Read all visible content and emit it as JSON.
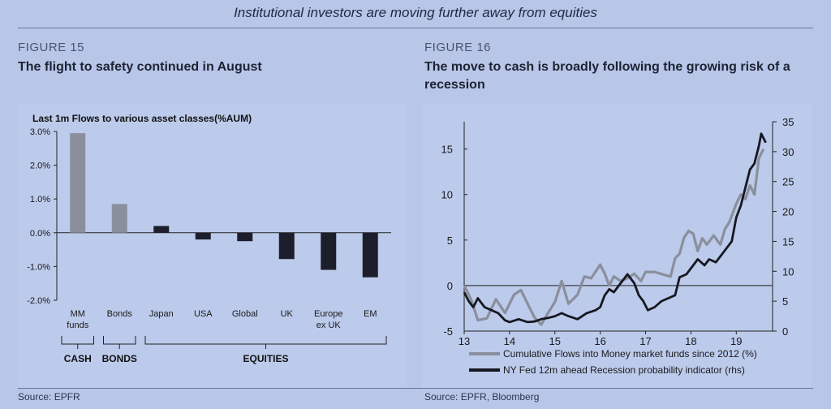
{
  "headline": "Institutional investors are moving further away from equities",
  "left": {
    "figure_number": "FIGURE 15",
    "figure_title": "The flight to safety continued in August",
    "source": "Source: EPFR"
  },
  "right": {
    "figure_number": "FIGURE 16",
    "figure_title_line1": "The move to cash is broadly following the growing risk of a",
    "figure_title_line2": "recession",
    "source": "Source: EPFR, Bloomberg"
  },
  "chart_data": [
    {
      "type": "bar",
      "title": "Last 1m Flows to various asset classes(%AUM)",
      "categories": [
        "MM funds",
        "Bonds",
        "Japan",
        "USA",
        "Global",
        "UK",
        "Europe ex UK",
        "EM"
      ],
      "category_labels": [
        [
          "MM",
          "funds"
        ],
        [
          "Bonds"
        ],
        [
          "Japan"
        ],
        [
          "USA"
        ],
        [
          "Global"
        ],
        [
          "UK"
        ],
        [
          "Europe",
          "ex UK"
        ],
        [
          "EM"
        ]
      ],
      "values": [
        2.95,
        0.85,
        0.2,
        -0.2,
        -0.25,
        -0.78,
        -1.1,
        -1.32
      ],
      "bar_colors": [
        "#8a8f9c",
        "#8a8f9c",
        "#1c1f2b",
        "#1c1f2b",
        "#1c1f2b",
        "#1c1f2b",
        "#1c1f2b",
        "#1c1f2b"
      ],
      "ylim": [
        -2.0,
        3.0
      ],
      "yticks": [
        3.0,
        2.0,
        1.0,
        0.0,
        -1.0,
        -2.0
      ],
      "ytick_labels": [
        "3.0%",
        "2.0%",
        "1.0%",
        "0.0%",
        "-1.0%",
        "-2.0%"
      ],
      "groups": [
        {
          "label": "CASH",
          "from": 0,
          "to": 0
        },
        {
          "label": "BONDS",
          "from": 1,
          "to": 1
        },
        {
          "label": "EQUITIES",
          "from": 2,
          "to": 7
        }
      ]
    },
    {
      "type": "line",
      "xlim": [
        13,
        19.8
      ],
      "xticks": [
        13,
        14,
        15,
        16,
        17,
        18,
        19
      ],
      "ylim_left": [
        -5,
        18
      ],
      "yticks_left": [
        15,
        10,
        5,
        0,
        -5
      ],
      "ylim_right": [
        0,
        35
      ],
      "yticks_right": [
        35,
        30,
        25,
        20,
        15,
        10,
        5,
        0
      ],
      "series": [
        {
          "name": "Cumulative Flows into Money market funds since 2012 (%)",
          "axis": "left",
          "color": "#8a8f9c",
          "points": [
            [
              13.0,
              0.0
            ],
            [
              13.15,
              -1.5
            ],
            [
              13.3,
              -3.8
            ],
            [
              13.5,
              -3.6
            ],
            [
              13.7,
              -1.5
            ],
            [
              13.9,
              -3.0
            ],
            [
              14.1,
              -1.0
            ],
            [
              14.25,
              -0.5
            ],
            [
              14.4,
              -2.0
            ],
            [
              14.55,
              -3.5
            ],
            [
              14.7,
              -4.3
            ],
            [
              14.85,
              -3.0
            ],
            [
              15.0,
              -1.8
            ],
            [
              15.15,
              0.5
            ],
            [
              15.3,
              -2.0
            ],
            [
              15.5,
              -1.0
            ],
            [
              15.65,
              1.0
            ],
            [
              15.8,
              0.8
            ],
            [
              16.0,
              2.3
            ],
            [
              16.1,
              1.3
            ],
            [
              16.2,
              0.0
            ],
            [
              16.3,
              1.0
            ],
            [
              16.45,
              0.5
            ],
            [
              16.6,
              0.8
            ],
            [
              16.75,
              1.3
            ],
            [
              16.9,
              0.5
            ],
            [
              17.0,
              1.5
            ],
            [
              17.2,
              1.5
            ],
            [
              17.4,
              1.2
            ],
            [
              17.55,
              1.0
            ],
            [
              17.65,
              3.0
            ],
            [
              17.75,
              3.5
            ],
            [
              17.85,
              5.3
            ],
            [
              17.95,
              6.0
            ],
            [
              18.05,
              5.7
            ],
            [
              18.15,
              3.8
            ],
            [
              18.25,
              5.2
            ],
            [
              18.35,
              4.5
            ],
            [
              18.5,
              5.5
            ],
            [
              18.65,
              4.5
            ],
            [
              18.75,
              6.2
            ],
            [
              18.85,
              7.0
            ],
            [
              19.0,
              9.0
            ],
            [
              19.1,
              10.0
            ],
            [
              19.2,
              9.5
            ],
            [
              19.3,
              11.0
            ],
            [
              19.4,
              10.0
            ],
            [
              19.5,
              14.0
            ],
            [
              19.6,
              15.0
            ]
          ]
        },
        {
          "name": "NY Fed 12m ahead Recession probability indicator (rhs)",
          "axis": "right",
          "color": "#161820",
          "points": [
            [
              13.0,
              6.5
            ],
            [
              13.1,
              5.0
            ],
            [
              13.2,
              4.0
            ],
            [
              13.3,
              5.5
            ],
            [
              13.45,
              4.0
            ],
            [
              13.6,
              3.5
            ],
            [
              13.75,
              3.0
            ],
            [
              13.9,
              1.8
            ],
            [
              14.0,
              1.5
            ],
            [
              14.2,
              2.0
            ],
            [
              14.4,
              1.5
            ],
            [
              14.55,
              1.6
            ],
            [
              14.7,
              2.0
            ],
            [
              14.85,
              2.2
            ],
            [
              15.0,
              2.5
            ],
            [
              15.15,
              3.0
            ],
            [
              15.3,
              2.5
            ],
            [
              15.5,
              2.0
            ],
            [
              15.7,
              3.0
            ],
            [
              15.9,
              3.5
            ],
            [
              16.0,
              4.0
            ],
            [
              16.1,
              6.0
            ],
            [
              16.2,
              7.0
            ],
            [
              16.3,
              6.5
            ],
            [
              16.45,
              8.0
            ],
            [
              16.6,
              9.5
            ],
            [
              16.75,
              8.0
            ],
            [
              16.85,
              6.0
            ],
            [
              16.95,
              5.0
            ],
            [
              17.05,
              3.5
            ],
            [
              17.2,
              4.0
            ],
            [
              17.35,
              5.0
            ],
            [
              17.5,
              5.5
            ],
            [
              17.65,
              6.0
            ],
            [
              17.75,
              9.0
            ],
            [
              17.9,
              9.5
            ],
            [
              18.0,
              10.5
            ],
            [
              18.15,
              12.0
            ],
            [
              18.3,
              11.0
            ],
            [
              18.4,
              12.0
            ],
            [
              18.55,
              11.5
            ],
            [
              18.7,
              13.0
            ],
            [
              18.8,
              14.0
            ],
            [
              18.9,
              15.0
            ],
            [
              19.0,
              19.0
            ],
            [
              19.1,
              21.0
            ],
            [
              19.2,
              24.0
            ],
            [
              19.3,
              27.0
            ],
            [
              19.4,
              28.0
            ],
            [
              19.5,
              31.0
            ],
            [
              19.55,
              33.0
            ],
            [
              19.65,
              31.5
            ]
          ]
        }
      ]
    }
  ]
}
